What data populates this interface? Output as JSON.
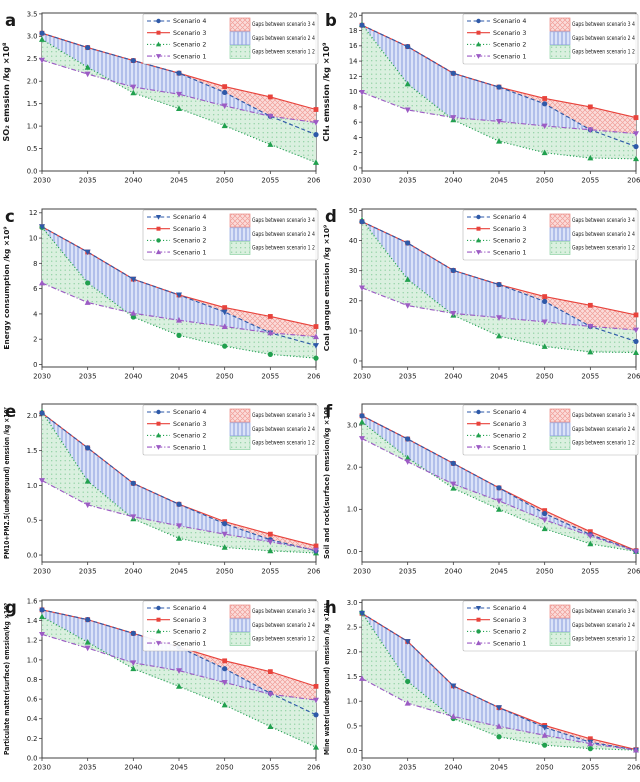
{
  "figure": {
    "background": "#ffffff",
    "x": [
      2030,
      2035,
      2040,
      2045,
      2050,
      2055,
      2060
    ],
    "x_tick_labels": [
      "2030",
      "2035",
      "2040",
      "2045",
      "2050",
      "2055",
      "2060"
    ],
    "colors": {
      "scenario4_blue": "#2E59A8",
      "scenario3_red": "#E8433C",
      "scenario2_green": "#21A04E",
      "scenario1_purple": "#9C5BC4",
      "gap34_fill": "#FADCDA",
      "gap24_fill": "#DBE3F8",
      "gap12_fill": "#DAF0DF"
    },
    "legend": {
      "series_labels": [
        "Scenario 4",
        "Scenario 3",
        "Scenario 2",
        "Scenario 1"
      ],
      "gap_labels": [
        "Gaps between scenario 3 4",
        "Gaps between scenario 2 4",
        "Gaps between scenario 1 2"
      ]
    }
  },
  "chart_data": [
    {
      "panel": "a",
      "type": "line",
      "ylabel": "SO₂ emssion /kg ×10⁸",
      "ylim": [
        0,
        3.52
      ],
      "y_tick_labels": [
        "0.0",
        "0.5",
        "1.0",
        "1.5",
        "2.0",
        "2.5",
        "3.0",
        "3.5"
      ],
      "series": [
        {
          "name": "Scenario 4",
          "color": "#2E59A8",
          "marker": "circle",
          "linestyle": "dashed",
          "values": [
            3.07,
            2.75,
            2.46,
            2.18,
            1.75,
            1.22,
            0.81
          ]
        },
        {
          "name": "Scenario 3",
          "color": "#E8433C",
          "marker": "square",
          "linestyle": "solid",
          "values": [
            3.07,
            2.75,
            2.46,
            2.18,
            1.88,
            1.65,
            1.37
          ]
        },
        {
          "name": "Scenario 2",
          "color": "#21A04E",
          "marker": "triangle-up",
          "linestyle": "dotted",
          "values": [
            2.93,
            2.31,
            1.74,
            1.39,
            1.01,
            0.59,
            0.19
          ]
        },
        {
          "name": "Scenario 1",
          "color": "#9C5BC4",
          "marker": "triangle-down",
          "linestyle": "dashdot",
          "values": [
            2.47,
            2.16,
            1.87,
            1.71,
            1.45,
            1.22,
            1.08
          ]
        }
      ],
      "gaps": [
        {
          "label": "Gaps between scenario 3 4",
          "between": [
            "Scenario 3",
            "Scenario 4"
          ],
          "pattern": "crosshatch-red",
          "edge": "#EC8B85"
        },
        {
          "label": "Gaps between scenario 2 4",
          "between": [
            "Scenario 4",
            "Scenario 2"
          ],
          "pattern": "vlines-blue",
          "edge": "#93A6DE"
        },
        {
          "label": "Gaps between scenario 1 2",
          "between": [
            "Scenario 1",
            "Scenario 2"
          ],
          "pattern": "dots-green",
          "edge": "#93D4A8"
        }
      ]
    },
    {
      "panel": "b",
      "type": "line",
      "ylabel": "CH₄ emssion /kg ×10⁹",
      "ylim": [
        -0.4,
        20.3
      ],
      "y_tick_labels": [
        "0",
        "2",
        "4",
        "6",
        "8",
        "10",
        "12",
        "14",
        "16",
        "18",
        "20"
      ],
      "series": [
        {
          "name": "Scenario 4",
          "color": "#2E59A8",
          "marker": "circle",
          "linestyle": "dashed",
          "values": [
            18.7,
            15.9,
            12.4,
            10.6,
            8.4,
            5.0,
            2.8
          ]
        },
        {
          "name": "Scenario 3",
          "color": "#E8433C",
          "marker": "square",
          "linestyle": "solid",
          "values": [
            18.7,
            15.9,
            12.4,
            10.6,
            9.1,
            8.0,
            6.6
          ]
        },
        {
          "name": "Scenario 2",
          "color": "#21A04E",
          "marker": "triangle-up",
          "linestyle": "dotted",
          "values": [
            18.8,
            11.0,
            6.3,
            3.5,
            2.0,
            1.3,
            1.2
          ]
        },
        {
          "name": "Scenario 1",
          "color": "#9C5BC4",
          "marker": "triangle-down",
          "linestyle": "dashdot",
          "values": [
            9.9,
            7.6,
            6.6,
            6.1,
            5.5,
            5.0,
            4.5
          ]
        }
      ],
      "gaps": [
        {
          "label": "Gaps between scenario 3 4",
          "between": [
            "Scenario 3",
            "Scenario 4"
          ],
          "pattern": "crosshatch-red",
          "edge": "#EC8B85"
        },
        {
          "label": "Gaps between scenario 2 4",
          "between": [
            "Scenario 4",
            "Scenario 2"
          ],
          "pattern": "vlines-blue",
          "edge": "#93A6DE"
        },
        {
          "label": "Gaps between scenario 1 2",
          "between": [
            "Scenario 1",
            "Scenario 2"
          ],
          "pattern": "dots-green",
          "edge": "#93D4A8"
        }
      ]
    },
    {
      "panel": "c",
      "type": "line",
      "ylabel": "Energy consumption /kg ×10⁹",
      "ylim": [
        -0.2,
        12.3
      ],
      "y_tick_labels": [
        "0",
        "2",
        "4",
        "6",
        "8",
        "10",
        "12"
      ],
      "series": [
        {
          "name": "Scenario 4",
          "color": "#2E59A8",
          "marker": "triangle-down",
          "linestyle": "dashed",
          "values": [
            10.9,
            8.9,
            6.75,
            5.5,
            4.15,
            2.5,
            1.5
          ]
        },
        {
          "name": "Scenario 3",
          "color": "#E8433C",
          "marker": "square",
          "linestyle": "solid",
          "values": [
            10.9,
            8.9,
            6.75,
            5.5,
            4.5,
            3.8,
            3.0
          ]
        },
        {
          "name": "Scenario 2",
          "color": "#21A04E",
          "marker": "circle",
          "linestyle": "dotted",
          "values": [
            10.85,
            6.45,
            3.75,
            2.3,
            1.45,
            0.8,
            0.5
          ]
        },
        {
          "name": "Scenario 1",
          "color": "#9C5BC4",
          "marker": "triangle-up",
          "linestyle": "dashdot",
          "values": [
            6.45,
            4.9,
            4.05,
            3.5,
            3.0,
            2.5,
            2.2
          ]
        }
      ],
      "gaps": [
        {
          "label": "Gaps between scenario 3 4",
          "between": [
            "Scenario 3",
            "Scenario 4"
          ],
          "pattern": "crosshatch-red",
          "edge": "#EC8B85"
        },
        {
          "label": "Gaps between scenario 2 4",
          "between": [
            "Scenario 4",
            "Scenario 2"
          ],
          "pattern": "vlines-blue",
          "edge": "#93A6DE"
        },
        {
          "label": "Gaps between scenario 1 2",
          "between": [
            "Scenario 1",
            "Scenario 2"
          ],
          "pattern": "dots-green",
          "edge": "#93D4A8"
        }
      ]
    },
    {
      "panel": "d",
      "type": "line",
      "ylabel": "Coal gangue emssion /kg ×10⁹",
      "ylim": [
        -2,
        50.5
      ],
      "y_tick_labels": [
        "0",
        "10",
        "20",
        "30",
        "40",
        "50"
      ],
      "series": [
        {
          "name": "Scenario 4",
          "color": "#2E59A8",
          "marker": "circle",
          "linestyle": "dashed",
          "values": [
            46.3,
            39.2,
            30.1,
            25.4,
            19.8,
            11.5,
            6.5
          ]
        },
        {
          "name": "Scenario 3",
          "color": "#E8433C",
          "marker": "square",
          "linestyle": "solid",
          "values": [
            46.3,
            39.2,
            30.1,
            25.4,
            21.4,
            18.5,
            15.3
          ]
        },
        {
          "name": "Scenario 2",
          "color": "#21A04E",
          "marker": "triangle-up",
          "linestyle": "dotted",
          "values": [
            46.8,
            27.1,
            15.2,
            8.3,
            4.8,
            3.0,
            2.8
          ]
        },
        {
          "name": "Scenario 1",
          "color": "#9C5BC4",
          "marker": "triangle-down",
          "linestyle": "dashdot",
          "values": [
            24.3,
            18.4,
            15.8,
            14.4,
            13.0,
            11.5,
            10.3
          ]
        }
      ],
      "gaps": [
        {
          "label": "Gaps between scenario 3 4",
          "between": [
            "Scenario 3",
            "Scenario 4"
          ],
          "pattern": "crosshatch-red",
          "edge": "#EC8B85"
        },
        {
          "label": "Gaps between scenario 2 4",
          "between": [
            "Scenario 4",
            "Scenario 2"
          ],
          "pattern": "vlines-blue",
          "edge": "#93A6DE"
        },
        {
          "label": "Gaps between scenario 1 2",
          "between": [
            "Scenario 1",
            "Scenario 2"
          ],
          "pattern": "dots-green",
          "edge": "#93D4A8"
        }
      ]
    },
    {
      "panel": "e",
      "type": "line",
      "ylabel": "PM10+PM2.5(underground) emssion /kg ×10⁷",
      "ylim": [
        -0.1,
        2.17
      ],
      "y_tick_labels": [
        "0.0",
        "0.5",
        "1.0",
        "1.5",
        "2.0"
      ],
      "series": [
        {
          "name": "Scenario 4",
          "color": "#2E59A8",
          "marker": "circle",
          "linestyle": "dashed",
          "values": [
            2.04,
            1.54,
            1.03,
            0.73,
            0.45,
            0.22,
            0.06
          ]
        },
        {
          "name": "Scenario 3",
          "color": "#E8433C",
          "marker": "square",
          "linestyle": "solid",
          "values": [
            2.04,
            1.54,
            1.03,
            0.73,
            0.48,
            0.3,
            0.13
          ]
        },
        {
          "name": "Scenario 2",
          "color": "#21A04E",
          "marker": "triangle-up",
          "linestyle": "dotted",
          "values": [
            2.06,
            1.06,
            0.52,
            0.24,
            0.11,
            0.06,
            0.03
          ]
        },
        {
          "name": "Scenario 1",
          "color": "#9C5BC4",
          "marker": "triangle-down",
          "linestyle": "dashdot",
          "values": [
            1.07,
            0.72,
            0.55,
            0.42,
            0.3,
            0.19,
            0.07
          ]
        }
      ],
      "gaps": [
        {
          "label": "Gaps between scenario 3 4",
          "between": [
            "Scenario 3",
            "Scenario 4"
          ],
          "pattern": "crosshatch-red",
          "edge": "#EC8B85"
        },
        {
          "label": "Gaps between scenario 2 4",
          "between": [
            "Scenario 4",
            "Scenario 2"
          ],
          "pattern": "vlines-blue",
          "edge": "#93A6DE"
        },
        {
          "label": "Gaps between scenario 1 2",
          "between": [
            "Scenario 1",
            "Scenario 2"
          ],
          "pattern": "dots-green",
          "edge": "#93D4A8"
        }
      ]
    },
    {
      "panel": "f",
      "type": "line",
      "ylabel": "Soil and rock(surface) emssion/kg ×10⁸",
      "ylim": [
        -0.25,
        3.5
      ],
      "y_tick_labels": [
        "0.0",
        "1.0",
        "2.0",
        "3.0"
      ],
      "series": [
        {
          "name": "Scenario 4",
          "color": "#2E59A8",
          "marker": "circle",
          "linestyle": "dashed",
          "values": [
            3.22,
            2.67,
            2.09,
            1.51,
            0.9,
            0.4,
            0.01
          ]
        },
        {
          "name": "Scenario 3",
          "color": "#E8433C",
          "marker": "square",
          "linestyle": "solid",
          "values": [
            3.22,
            2.67,
            2.09,
            1.51,
            0.97,
            0.47,
            0.02
          ]
        },
        {
          "name": "Scenario 2",
          "color": "#21A04E",
          "marker": "triangle-up",
          "linestyle": "dotted",
          "values": [
            3.07,
            2.22,
            1.5,
            1.0,
            0.54,
            0.18,
            0.0
          ]
        },
        {
          "name": "Scenario 1",
          "color": "#9C5BC4",
          "marker": "triangle-down",
          "linestyle": "dashdot",
          "values": [
            2.68,
            2.13,
            1.6,
            1.2,
            0.75,
            0.37,
            0.0
          ]
        }
      ],
      "gaps": [
        {
          "label": "Gaps between scenario 3 4",
          "between": [
            "Scenario 3",
            "Scenario 4"
          ],
          "pattern": "crosshatch-red",
          "edge": "#EC8B85"
        },
        {
          "label": "Gaps between scenario 2 4",
          "between": [
            "Scenario 4",
            "Scenario 2"
          ],
          "pattern": "vlines-blue",
          "edge": "#93A6DE"
        },
        {
          "label": "Gaps between scenario 1 2",
          "between": [
            "Scenario 1",
            "Scenario 2"
          ],
          "pattern": "dots-green",
          "edge": "#93D4A8"
        }
      ]
    },
    {
      "panel": "g",
      "type": "line",
      "ylabel": "Particulate matter(surface) emssion/kg ×10⁸",
      "ylim": [
        0,
        1.61
      ],
      "y_tick_labels": [
        "0.0",
        "0.2",
        "0.4",
        "0.6",
        "0.8",
        "1.0",
        "1.2",
        "1.4",
        "1.6"
      ],
      "series": [
        {
          "name": "Scenario 4",
          "color": "#2E59A8",
          "marker": "circle",
          "linestyle": "dashed",
          "values": [
            1.51,
            1.41,
            1.27,
            1.13,
            0.91,
            0.66,
            0.44
          ]
        },
        {
          "name": "Scenario 3",
          "color": "#E8433C",
          "marker": "square",
          "linestyle": "solid",
          "values": [
            1.51,
            1.41,
            1.27,
            1.13,
            0.99,
            0.88,
            0.73
          ]
        },
        {
          "name": "Scenario 2",
          "color": "#21A04E",
          "marker": "triangle-up",
          "linestyle": "dotted",
          "values": [
            1.44,
            1.18,
            0.91,
            0.73,
            0.54,
            0.32,
            0.11
          ]
        },
        {
          "name": "Scenario 1",
          "color": "#9C5BC4",
          "marker": "triangle-down",
          "linestyle": "dashdot",
          "values": [
            1.26,
            1.12,
            0.97,
            0.89,
            0.77,
            0.65,
            0.59
          ]
        }
      ],
      "gaps": [
        {
          "label": "Gaps between scenario 3 4",
          "between": [
            "Scenario 3",
            "Scenario 4"
          ],
          "pattern": "crosshatch-red",
          "edge": "#EC8B85"
        },
        {
          "label": "Gaps between scenario 2 4",
          "between": [
            "Scenario 4",
            "Scenario 2"
          ],
          "pattern": "vlines-blue",
          "edge": "#93A6DE"
        },
        {
          "label": "Gaps between scenario 1 2",
          "between": [
            "Scenario 1",
            "Scenario 2"
          ],
          "pattern": "dots-green",
          "edge": "#93D4A8"
        }
      ]
    },
    {
      "panel": "h",
      "type": "line",
      "ylabel": "Mine water(underground) emssion /kg ×10¹¹",
      "ylim": [
        -0.15,
        3.05
      ],
      "y_tick_labels": [
        "0.0",
        "0.5",
        "1.0",
        "1.5",
        "2.0",
        "2.5",
        "3.0"
      ],
      "series": [
        {
          "name": "Scenario 4",
          "color": "#2E59A8",
          "marker": "triangle-down",
          "linestyle": "dashed",
          "values": [
            2.78,
            2.21,
            1.31,
            0.87,
            0.47,
            0.17,
            0.01
          ]
        },
        {
          "name": "Scenario 3",
          "color": "#E8433C",
          "marker": "square",
          "linestyle": "solid",
          "values": [
            2.78,
            2.21,
            1.31,
            0.87,
            0.51,
            0.24,
            0.02
          ]
        },
        {
          "name": "Scenario 2",
          "color": "#21A04E",
          "marker": "circle",
          "linestyle": "dotted",
          "values": [
            2.79,
            1.4,
            0.65,
            0.28,
            0.11,
            0.04,
            0.01
          ]
        },
        {
          "name": "Scenario 1",
          "color": "#9C5BC4",
          "marker": "triangle-up",
          "linestyle": "dashdot",
          "values": [
            1.46,
            0.96,
            0.69,
            0.49,
            0.31,
            0.14,
            0.01
          ]
        }
      ],
      "gaps": [
        {
          "label": "Gaps between scenario 3 4",
          "between": [
            "Scenario 3",
            "Scenario 4"
          ],
          "pattern": "crosshatch-red",
          "edge": "#EC8B85"
        },
        {
          "label": "Gaps between scenario 2 4",
          "between": [
            "Scenario 4",
            "Scenario 2"
          ],
          "pattern": "vlines-blue",
          "edge": "#93A6DE"
        },
        {
          "label": "Gaps between scenario 1 2",
          "between": [
            "Scenario 1",
            "Scenario 2"
          ],
          "pattern": "dots-green",
          "edge": "#93D4A8"
        }
      ]
    }
  ]
}
